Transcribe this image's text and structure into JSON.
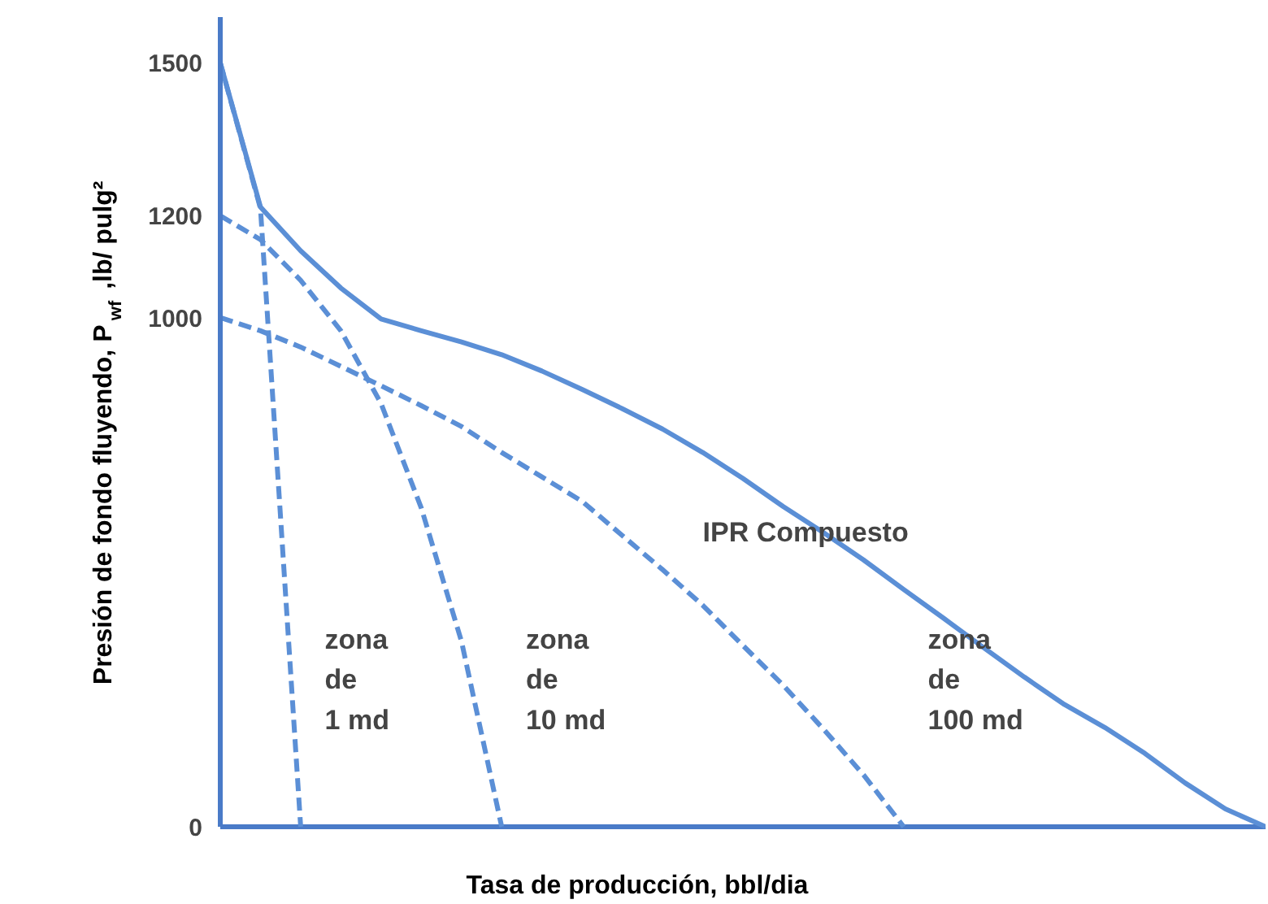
{
  "chart_data": {
    "type": "line",
    "xlabel": "Tasa de producción, bbl/dia",
    "ylabel": "Presión de fondo fluyendo, P$_{wf}$ ,lb/ pulg²",
    "categories": [
      null,
      null,
      null,
      null,
      null,
      null,
      null,
      null,
      null,
      null,
      null,
      null,
      null,
      null,
      null,
      null,
      null,
      null,
      null,
      null,
      null,
      null,
      null,
      null,
      null,
      null,
      null
    ],
    "ylim": [
      0,
      1590
    ],
    "yticks": [
      0,
      1000,
      1200,
      1500
    ],
    "tick_labels": "y",
    "grid": false,
    "marker": "none",
    "series": [
      {
        "color": "#5b8fd6",
        "line_style": "solid",
        "values": [
          1500,
          1217,
          1131,
          1058,
          997,
          974,
          952,
          927,
          895,
          859,
          821,
          781,
          735,
          684,
          629,
          578,
          524,
          466,
          409,
          351,
          294,
          240,
          195,
          144,
          86,
          35,
          0
        ]
      },
      {
        "name": "zona\nde\n1 md",
        "color": "#5b8fd6",
        "line_style": "dashed",
        "values": [
          1500,
          1214,
          0,
          null,
          null,
          null,
          null,
          null,
          null,
          null,
          null,
          null,
          null,
          null,
          null,
          null,
          null,
          null,
          null,
          null,
          null,
          null,
          null,
          null,
          null,
          null,
          null
        ]
      },
      {
        "name": "zona\nde\n10 md",
        "color": "#5b8fd6",
        "line_style": "dashed",
        "values": [
          1200,
          1153,
          1073,
          974,
          831,
          626,
          364,
          0,
          null,
          null,
          null,
          null,
          null,
          null,
          null,
          null,
          null,
          null,
          null,
          null,
          null,
          null,
          null,
          null,
          null,
          null,
          null
        ]
      },
      {
        "name": "zona\nde\n100 md",
        "color": "#5b8fd6",
        "line_style": "dashed",
        "values": [
          1000,
          974,
          942,
          904,
          866,
          827,
          786,
          735,
          687,
          639,
          572,
          505,
          435,
          356,
          278,
          192,
          102,
          0,
          null,
          null,
          null,
          null,
          null,
          null,
          null,
          null,
          null
        ]
      }
    ],
    "annotations": [
      "IPR Compuesto"
    ]
  }
}
